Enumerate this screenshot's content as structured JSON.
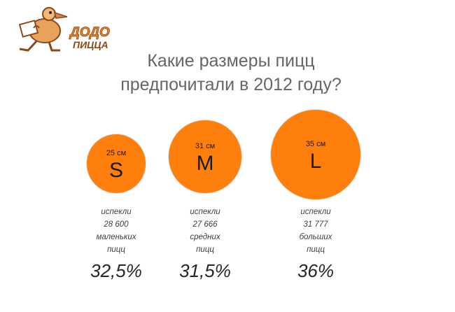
{
  "logo": {
    "text_line1": "ДОДО",
    "text_line2": "ПИЦЦА"
  },
  "title": {
    "line1": "Какие размеры пицц",
    "line2": "предпочитали в 2012 году?"
  },
  "chart_data": {
    "type": "bubble",
    "title": "Какие размеры пицц предпочитали в 2012 году?",
    "categories": [
      "S",
      "M",
      "L"
    ],
    "diameter_labels": [
      "25 см",
      "31 см",
      "35 см"
    ],
    "count_labels": [
      "28 600",
      "27 666",
      "31 777"
    ],
    "percent_labels": [
      "32,5%",
      "31,5%",
      "36%"
    ],
    "caption_pre": [
      "испекли",
      "испекли",
      "испекли"
    ],
    "caption_post": [
      [
        "маленьких",
        "пицц"
      ],
      [
        "средних",
        "пицц"
      ],
      [
        "больших",
        "пицц"
      ]
    ],
    "percent_values": [
      32.5,
      31.5,
      36
    ],
    "colors": {
      "circle": "#ff7f0c"
    }
  }
}
